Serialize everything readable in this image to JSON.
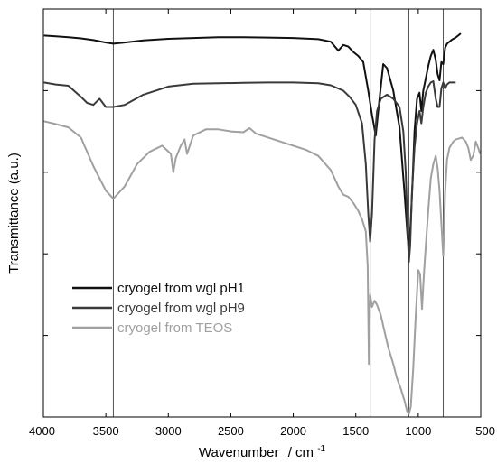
{
  "chart_data": {
    "type": "line",
    "xlabel": "Wavenumber",
    "xlabel_unit": "/ cm",
    "xlabel_unit_exp": "-1",
    "ylabel": "Transmittance (a.u.)",
    "xlim": [
      4000,
      500
    ],
    "x_reversed": true,
    "ylim": [
      0,
      100
    ],
    "grid": false,
    "legend_position": "bottom-left",
    "xticks": [
      4000,
      3500,
      3000,
      2500,
      2000,
      1500,
      1000,
      500
    ],
    "xtick_labels": [
      "4000",
      "3500",
      "3000",
      "2500",
      "2000",
      "1500",
      "1000",
      "500"
    ],
    "yticks": [
      0,
      20,
      40,
      60,
      80,
      100
    ],
    "reference_lines_x": [
      3440,
      1385,
      1075,
      800
    ],
    "series": [
      {
        "name": "cryogel from wgl pH1",
        "color": "#111111",
        "x": [
          3995,
          3900,
          3800,
          3700,
          3600,
          3500,
          3440,
          3350,
          3200,
          3000,
          2800,
          2600,
          2400,
          2200,
          2000,
          1800,
          1700,
          1640,
          1600,
          1560,
          1520,
          1480,
          1440,
          1400,
          1370,
          1340,
          1310,
          1280,
          1250,
          1200,
          1150,
          1110,
          1085,
          1075,
          1060,
          1045,
          1030,
          1010,
          990,
          975,
          960,
          940,
          920,
          900,
          880,
          860,
          845,
          830,
          815,
          800,
          785,
          770,
          750,
          730,
          700,
          680,
          660
        ],
        "y": [
          93.5,
          93.3,
          93.1,
          92.8,
          92.4,
          91.8,
          91.5,
          91.8,
          92.3,
          92.7,
          92.9,
          93.1,
          93.1,
          93.0,
          92.9,
          92.6,
          92.0,
          89.8,
          91.2,
          90.8,
          89.5,
          88.5,
          87.0,
          80.0,
          74.0,
          69.0,
          78.0,
          86.5,
          85.5,
          80.0,
          71.0,
          55.0,
          44.0,
          41.0,
          48.0,
          58.0,
          70.0,
          78.0,
          79.5,
          75.0,
          80.0,
          83.0,
          86.0,
          88.5,
          90.0,
          87.5,
          84.0,
          82.5,
          87.0,
          86.5,
          90.5,
          91.5,
          92.0,
          92.5,
          93.0,
          93.5,
          94.0
        ]
      },
      {
        "name": "cryogel from wgl pH9",
        "color": "#3a3a3a",
        "x": [
          3995,
          3900,
          3800,
          3700,
          3650,
          3600,
          3550,
          3500,
          3440,
          3350,
          3200,
          3000,
          2800,
          2600,
          2400,
          2200,
          2000,
          1800,
          1700,
          1600,
          1550,
          1500,
          1450,
          1420,
          1400,
          1385,
          1370,
          1350,
          1330,
          1300,
          1250,
          1200,
          1150,
          1120,
          1100,
          1085,
          1075,
          1065,
          1050,
          1030,
          1010,
          990,
          975,
          960,
          940,
          920,
          900,
          880,
          860,
          845,
          830,
          815,
          800,
          785,
          770,
          750,
          730,
          700
        ],
        "y": [
          82.0,
          81.5,
          81.2,
          78.5,
          77.0,
          76.5,
          78.0,
          76.0,
          76.0,
          76.5,
          79.0,
          81.0,
          81.7,
          81.8,
          81.9,
          82.0,
          82.0,
          81.8,
          81.3,
          80.0,
          78.5,
          76.5,
          72.0,
          62.0,
          50.0,
          43.0,
          50.0,
          68.0,
          75.0,
          78.0,
          79.0,
          78.0,
          76.0,
          70.0,
          60.0,
          45.0,
          38.0,
          42.0,
          55.0,
          66.0,
          72.0,
          75.0,
          72.0,
          76.0,
          79.5,
          81.0,
          82.0,
          82.3,
          78.0,
          76.0,
          76.0,
          80.5,
          82.0,
          80.5,
          81.5,
          82.0,
          82.0,
          82.0
        ]
      },
      {
        "name": "cryogel from TEOS",
        "color": "#a0a0a0",
        "x": [
          3995,
          3900,
          3800,
          3700,
          3600,
          3500,
          3440,
          3350,
          3250,
          3150,
          3050,
          2980,
          2960,
          2940,
          2900,
          2870,
          2850,
          2800,
          2700,
          2600,
          2500,
          2400,
          2350,
          2300,
          2200,
          2100,
          2000,
          1900,
          1800,
          1700,
          1640,
          1600,
          1560,
          1520,
          1480,
          1450,
          1420,
          1405,
          1395,
          1385,
          1370,
          1350,
          1330,
          1300,
          1270,
          1240,
          1200,
          1170,
          1140,
          1110,
          1090,
          1075,
          1060,
          1040,
          1020,
          1000,
          985,
          970,
          955,
          940,
          920,
          900,
          880,
          860,
          845,
          830,
          815,
          800,
          785,
          770,
          750,
          720,
          700,
          650,
          620,
          600,
          580,
          560,
          540,
          520,
          505
        ],
        "y": [
          72.5,
          71.8,
          71.0,
          68.5,
          61.5,
          55.5,
          53.5,
          56.5,
          62.0,
          65.0,
          66.5,
          64.5,
          60.0,
          63.5,
          66.5,
          68.0,
          64.5,
          69.0,
          70.5,
          70.5,
          70.0,
          69.8,
          70.8,
          69.5,
          68.5,
          67.5,
          66.5,
          65.5,
          64.0,
          60.5,
          56.5,
          54.5,
          54.0,
          52.5,
          50.5,
          48.5,
          45.5,
          37.0,
          13.0,
          30.0,
          27.0,
          28.5,
          27.5,
          25.0,
          21.0,
          17.0,
          13.0,
          9.5,
          7.0,
          4.0,
          1.5,
          0.8,
          2.5,
          12.0,
          25.0,
          36.0,
          35.0,
          26.5,
          35.0,
          42.0,
          50.5,
          58.5,
          62.0,
          64.0,
          61.0,
          55.5,
          47.5,
          39.5,
          55.0,
          63.0,
          66.0,
          67.5,
          68.0,
          68.5,
          67.5,
          66.0,
          63.0,
          64.0,
          67.5,
          66.0,
          64.5
        ]
      }
    ]
  }
}
